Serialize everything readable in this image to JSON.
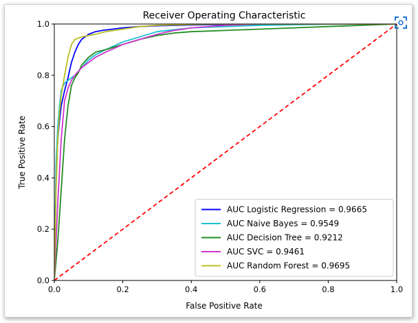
{
  "chart_data": {
    "type": "line",
    "title": "Receiver Operating Characteristic",
    "xlabel": "False Positive Rate",
    "ylabel": "True Positive Rate",
    "xlim": [
      0.0,
      1.0
    ],
    "ylim": [
      0.0,
      1.0
    ],
    "xticks": [
      "0.0",
      "0.2",
      "0.4",
      "0.6",
      "0.8",
      "1.0"
    ],
    "yticks": [
      "0.0",
      "0.2",
      "0.4",
      "0.6",
      "0.8",
      "1.0"
    ],
    "grid": false,
    "legend_position": "lower-right",
    "series": [
      {
        "name": "AUC Logistic Regression = 0.9665",
        "color": "#0000ff",
        "x": [
          0,
          0.005,
          0.01,
          0.015,
          0.02,
          0.03,
          0.04,
          0.05,
          0.06,
          0.07,
          0.08,
          0.09,
          0.1,
          0.12,
          0.14,
          0.17,
          0.2,
          0.25,
          0.3,
          0.4,
          0.5,
          0.7,
          1.0
        ],
        "y": [
          0,
          0.4,
          0.55,
          0.62,
          0.68,
          0.74,
          0.79,
          0.85,
          0.89,
          0.92,
          0.94,
          0.95,
          0.96,
          0.97,
          0.975,
          0.98,
          0.985,
          0.99,
          0.993,
          0.996,
          0.998,
          1.0,
          1.0
        ]
      },
      {
        "name": "AUC Naive Bayes = 0.9549",
        "color": "#17becf",
        "x": [
          0,
          0.005,
          0.01,
          0.015,
          0.02,
          0.03,
          0.04,
          0.05,
          0.06,
          0.08,
          0.1,
          0.12,
          0.15,
          0.2,
          0.25,
          0.3,
          0.4,
          0.5,
          0.6,
          0.8,
          1.0
        ],
        "y": [
          0,
          0.45,
          0.6,
          0.68,
          0.74,
          0.77,
          0.78,
          0.79,
          0.8,
          0.83,
          0.86,
          0.88,
          0.9,
          0.93,
          0.95,
          0.97,
          0.985,
          0.99,
          0.995,
          0.999,
          1.0
        ]
      },
      {
        "name": "AUC Decision Tree = 0.9212",
        "color": "#228b22",
        "x": [
          0,
          0.01,
          0.02,
          0.03,
          0.04,
          0.05,
          0.06,
          0.07,
          0.08,
          0.1,
          0.12,
          0.15,
          0.2,
          0.25,
          0.3,
          0.35,
          0.4,
          0.5,
          0.6,
          0.7,
          0.8,
          0.9,
          1.0
        ],
        "y": [
          0,
          0.15,
          0.35,
          0.55,
          0.68,
          0.76,
          0.79,
          0.81,
          0.84,
          0.87,
          0.89,
          0.9,
          0.92,
          0.94,
          0.955,
          0.965,
          0.97,
          0.975,
          0.98,
          0.985,
          0.99,
          0.995,
          1.0
        ]
      },
      {
        "name": "AUC SVC = 0.9461",
        "color": "#cc33cc",
        "x": [
          0,
          0.01,
          0.02,
          0.03,
          0.04,
          0.05,
          0.06,
          0.08,
          0.1,
          0.12,
          0.15,
          0.2,
          0.25,
          0.3,
          0.35,
          0.4,
          0.5,
          0.6,
          0.8,
          1.0
        ],
        "y": [
          0,
          0.3,
          0.55,
          0.7,
          0.75,
          0.78,
          0.8,
          0.83,
          0.85,
          0.87,
          0.89,
          0.92,
          0.94,
          0.96,
          0.975,
          0.985,
          0.995,
          1.0,
          1.0,
          1.0
        ]
      },
      {
        "name": "AUC Random Forest = 0.9695",
        "color": "#bcbd22",
        "x": [
          0,
          0.005,
          0.01,
          0.015,
          0.02,
          0.03,
          0.04,
          0.05,
          0.06,
          0.07,
          0.08,
          0.1,
          0.12,
          0.15,
          0.2,
          0.25,
          0.3,
          0.4,
          0.5,
          0.7,
          1.0
        ],
        "y": [
          0,
          0.35,
          0.55,
          0.65,
          0.72,
          0.8,
          0.87,
          0.92,
          0.94,
          0.945,
          0.95,
          0.955,
          0.96,
          0.97,
          0.98,
          0.99,
          0.995,
          0.998,
          1.0,
          1.0,
          1.0
        ]
      }
    ],
    "reference_line": {
      "color": "#ff0000",
      "style": "dashed",
      "x": [
        0,
        1
      ],
      "y": [
        0,
        1
      ]
    }
  }
}
